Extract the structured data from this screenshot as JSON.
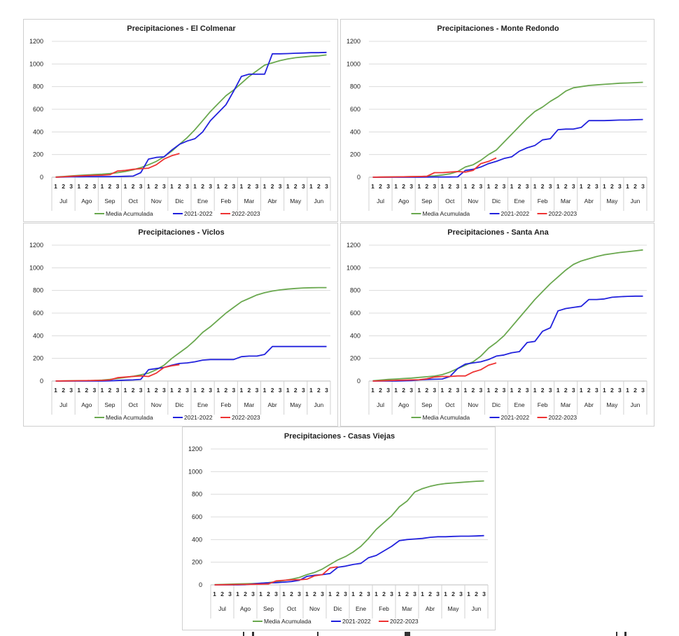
{
  "chart_data": [
    {
      "type": "line",
      "title": "Precipitaciones - El Colmenar",
      "xlabel": "",
      "ylabel": "",
      "ylim": [
        0,
        1200
      ],
      "yticks": [
        0,
        200,
        400,
        600,
        800,
        1000,
        1200
      ],
      "grid": true,
      "legend": "bottom",
      "months": [
        "Jul",
        "Ago",
        "Sep",
        "Oct",
        "Nov",
        "Dic",
        "Ene",
        "Feb",
        "Mar",
        "Abr",
        "May",
        "Jun"
      ],
      "decades": [
        "1",
        "2",
        "3"
      ],
      "series": [
        {
          "name": "Media Acumulada",
          "color": "#6aa84f",
          "values": [
            2,
            6,
            12,
            16,
            20,
            24,
            27,
            32,
            40,
            50,
            65,
            85,
            110,
            140,
            180,
            230,
            290,
            350,
            420,
            500,
            580,
            650,
            720,
            770,
            830,
            890,
            940,
            990,
            1010,
            1030,
            1045,
            1055,
            1062,
            1068,
            1072,
            1080
          ]
        },
        {
          "name": "2021-2022",
          "color": "#2222dd",
          "values": [
            0,
            2,
            4,
            4,
            5,
            5,
            5,
            5,
            6,
            8,
            10,
            40,
            160,
            175,
            180,
            240,
            290,
            320,
            340,
            400,
            500,
            570,
            640,
            760,
            890,
            910,
            910,
            910,
            1090,
            1090,
            1092,
            1095,
            1097,
            1100,
            1100,
            1102
          ]
        },
        {
          "name": "2022-2023",
          "color": "#ee3333",
          "values": [
            0,
            4,
            8,
            12,
            14,
            16,
            18,
            22,
            55,
            60,
            70,
            75,
            80,
            110,
            160,
            190,
            210
          ]
        }
      ]
    },
    {
      "type": "line",
      "title": "Precipitaciones - Monte Redondo",
      "xlabel": "",
      "ylabel": "",
      "ylim": [
        0,
        1200
      ],
      "yticks": [
        0,
        200,
        400,
        600,
        800,
        1000,
        1200
      ],
      "grid": true,
      "legend": "bottom",
      "months": [
        "Jul",
        "Ago",
        "Sep",
        "Oct",
        "Nov",
        "Dic",
        "Ene",
        "Feb",
        "Mar",
        "Abr",
        "May",
        "Jun"
      ],
      "decades": [
        "1",
        "2",
        "3"
      ],
      "series": [
        {
          "name": "Media Acumulada",
          "color": "#6aa84f",
          "values": [
            0,
            1,
            2,
            3,
            4,
            5,
            6,
            8,
            12,
            20,
            30,
            50,
            90,
            110,
            150,
            200,
            240,
            310,
            380,
            450,
            520,
            580,
            620,
            670,
            710,
            760,
            790,
            800,
            810,
            815,
            820,
            825,
            830,
            832,
            835,
            838
          ]
        },
        {
          "name": "2021-2022",
          "color": "#2222dd",
          "values": [
            0,
            0,
            0,
            0,
            0,
            0,
            0,
            1,
            2,
            2,
            2,
            3,
            60,
            70,
            90,
            120,
            140,
            165,
            180,
            230,
            260,
            280,
            330,
            340,
            420,
            425,
            425,
            440,
            500,
            500,
            500,
            502,
            505,
            505,
            508,
            510
          ]
        },
        {
          "name": "2022-2023",
          "color": "#ee3333",
          "values": [
            0,
            1,
            2,
            3,
            4,
            5,
            6,
            8,
            40,
            40,
            45,
            50,
            45,
            60,
            120,
            140,
            170
          ]
        }
      ]
    },
    {
      "type": "line",
      "title": "Precipitaciones -  Viclos",
      "xlabel": "",
      "ylabel": "",
      "ylim": [
        0,
        1200
      ],
      "yticks": [
        0,
        200,
        400,
        600,
        800,
        1000,
        1200
      ],
      "grid": true,
      "legend": "bottom",
      "months": [
        "Jul",
        "Ago",
        "Sep",
        "Oct",
        "Nov",
        "Dic",
        "Ene",
        "Feb",
        "Mar",
        "Abr",
        "May",
        "Jun"
      ],
      "decades": [
        "1",
        "2",
        "3"
      ],
      "series": [
        {
          "name": "Media Acumulada",
          "color": "#6aa84f",
          "values": [
            0,
            1,
            2,
            3,
            4,
            5,
            8,
            14,
            22,
            32,
            42,
            55,
            70,
            100,
            140,
            200,
            250,
            300,
            360,
            430,
            480,
            540,
            600,
            650,
            700,
            730,
            760,
            780,
            795,
            805,
            812,
            818,
            822,
            824,
            825,
            825
          ]
        },
        {
          "name": "2021-2022",
          "color": "#2222dd",
          "values": [
            0,
            0,
            0,
            0,
            0,
            0,
            0,
            2,
            5,
            8,
            10,
            15,
            100,
            110,
            120,
            140,
            155,
            160,
            170,
            185,
            190,
            190,
            190,
            190,
            215,
            220,
            220,
            235,
            305,
            305,
            305,
            305,
            305,
            305,
            305,
            305
          ]
        },
        {
          "name": "2022-2023",
          "color": "#ee3333",
          "values": [
            0,
            1,
            2,
            3,
            4,
            5,
            6,
            10,
            30,
            35,
            40,
            45,
            40,
            70,
            120,
            135,
            145
          ]
        }
      ]
    },
    {
      "type": "line",
      "title": "Precipitaciones - Santa Ana",
      "xlabel": "",
      "ylabel": "",
      "ylim": [
        0,
        1200
      ],
      "yticks": [
        0,
        200,
        400,
        600,
        800,
        1000,
        1200
      ],
      "grid": true,
      "legend": "bottom",
      "months": [
        "Jul",
        "Ago",
        "Sep",
        "Oct",
        "Nov",
        "Dic",
        "Ene",
        "Feb",
        "Mar",
        "Abr",
        "May",
        "Jun"
      ],
      "decades": [
        "1",
        "2",
        "3"
      ],
      "series": [
        {
          "name": "Media Acumulada",
          "color": "#6aa84f",
          "values": [
            2,
            8,
            14,
            18,
            22,
            26,
            32,
            38,
            44,
            56,
            80,
            110,
            140,
            170,
            220,
            290,
            340,
            400,
            480,
            560,
            640,
            720,
            790,
            860,
            920,
            980,
            1030,
            1060,
            1080,
            1100,
            1115,
            1125,
            1135,
            1142,
            1150,
            1158
          ]
        },
        {
          "name": "2021-2022",
          "color": "#2222dd",
          "values": [
            0,
            0,
            0,
            0,
            2,
            4,
            10,
            14,
            16,
            18,
            40,
            110,
            150,
            160,
            170,
            190,
            220,
            230,
            250,
            260,
            340,
            350,
            440,
            470,
            620,
            640,
            650,
            660,
            720,
            720,
            725,
            740,
            745,
            748,
            750,
            750
          ]
        },
        {
          "name": "2022-2023",
          "color": "#ee3333",
          "values": [
            0,
            2,
            4,
            6,
            8,
            10,
            12,
            20,
            35,
            40,
            40,
            45,
            45,
            80,
            100,
            140,
            160
          ]
        }
      ]
    },
    {
      "type": "line",
      "title": "Precipitaciones -  Casas Viejas",
      "xlabel": "",
      "ylabel": "",
      "ylim": [
        0,
        1200
      ],
      "yticks": [
        0,
        200,
        400,
        600,
        800,
        1000,
        1200
      ],
      "grid": true,
      "legend": "bottom",
      "months": [
        "Jul",
        "Ago",
        "Sep",
        "Oct",
        "Nov",
        "Dic",
        "Ene",
        "Feb",
        "Mar",
        "Abr",
        "May",
        "Jun"
      ],
      "decades": [
        "1",
        "2",
        "3"
      ],
      "series": [
        {
          "name": "Media Acumulada",
          "color": "#6aa84f",
          "values": [
            2,
            4,
            6,
            8,
            10,
            12,
            15,
            20,
            28,
            38,
            50,
            65,
            90,
            110,
            140,
            180,
            220,
            250,
            290,
            340,
            410,
            490,
            550,
            610,
            690,
            740,
            820,
            850,
            870,
            885,
            895,
            900,
            905,
            910,
            915,
            918
          ]
        },
        {
          "name": "2021-2022",
          "color": "#2222dd",
          "values": [
            0,
            0,
            0,
            0,
            2,
            8,
            14,
            18,
            20,
            24,
            30,
            40,
            75,
            85,
            90,
            100,
            155,
            165,
            180,
            190,
            240,
            260,
            300,
            340,
            390,
            400,
            405,
            410,
            420,
            425,
            425,
            428,
            430,
            430,
            432,
            435
          ]
        },
        {
          "name": "2022-2023",
          "color": "#ee3333",
          "values": [
            0,
            1,
            2,
            3,
            4,
            5,
            6,
            8,
            35,
            40,
            45,
            45,
            50,
            80,
            90,
            150,
            160
          ]
        }
      ]
    }
  ]
}
